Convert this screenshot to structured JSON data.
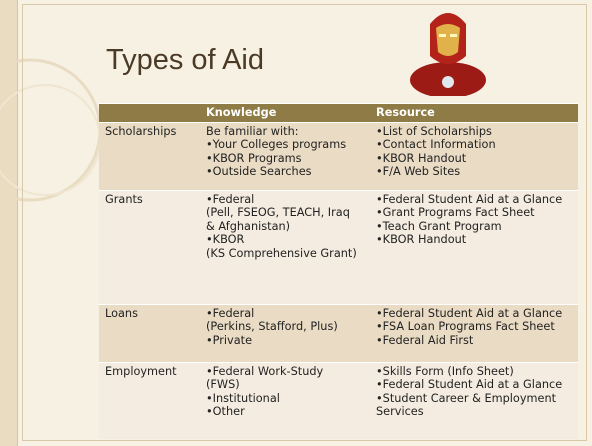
{
  "title": "Types of Aid",
  "table": {
    "header": [
      "",
      "Knowledge",
      "Resource"
    ],
    "rows": [
      [
        [
          "Scholarships"
        ],
        [
          "Be familiar with:",
          "•Your Colleges programs",
          "•KBOR Programs",
          "•Outside Searches"
        ],
        [
          "•List of Scholarships",
          "•Contact Information",
          "•KBOR Handout",
          "•F/A Web Sites"
        ]
      ],
      [
        [
          "Grants"
        ],
        [
          "•Federal",
          "(Pell, FSEOG, TEACH, Iraq",
          "& Afghanistan)",
          "•KBOR",
          "(KS Comprehensive Grant)"
        ],
        [
          "•Federal Student Aid at a Glance",
          "•Grant Programs Fact Sheet",
          "•Teach Grant Program",
          "•KBOR Handout"
        ]
      ],
      [
        [
          "Loans"
        ],
        [
          "•Federal",
          "(Perkins, Stafford, Plus)",
          "•Private"
        ],
        [
          "•Federal Student Aid at a Glance",
          "•FSA Loan Programs Fact Sheet",
          "•Federal Aid First"
        ]
      ],
      [
        [
          "Employment"
        ],
        [
          "•Federal Work-Study",
          "(FWS)",
          "•Institutional",
          "•Other"
        ],
        [
          "•Skills Form (Info Sheet)",
          "•Federal Student Aid at a Glance",
          "•Student Career & Employment",
          "Services"
        ]
      ]
    ]
  }
}
